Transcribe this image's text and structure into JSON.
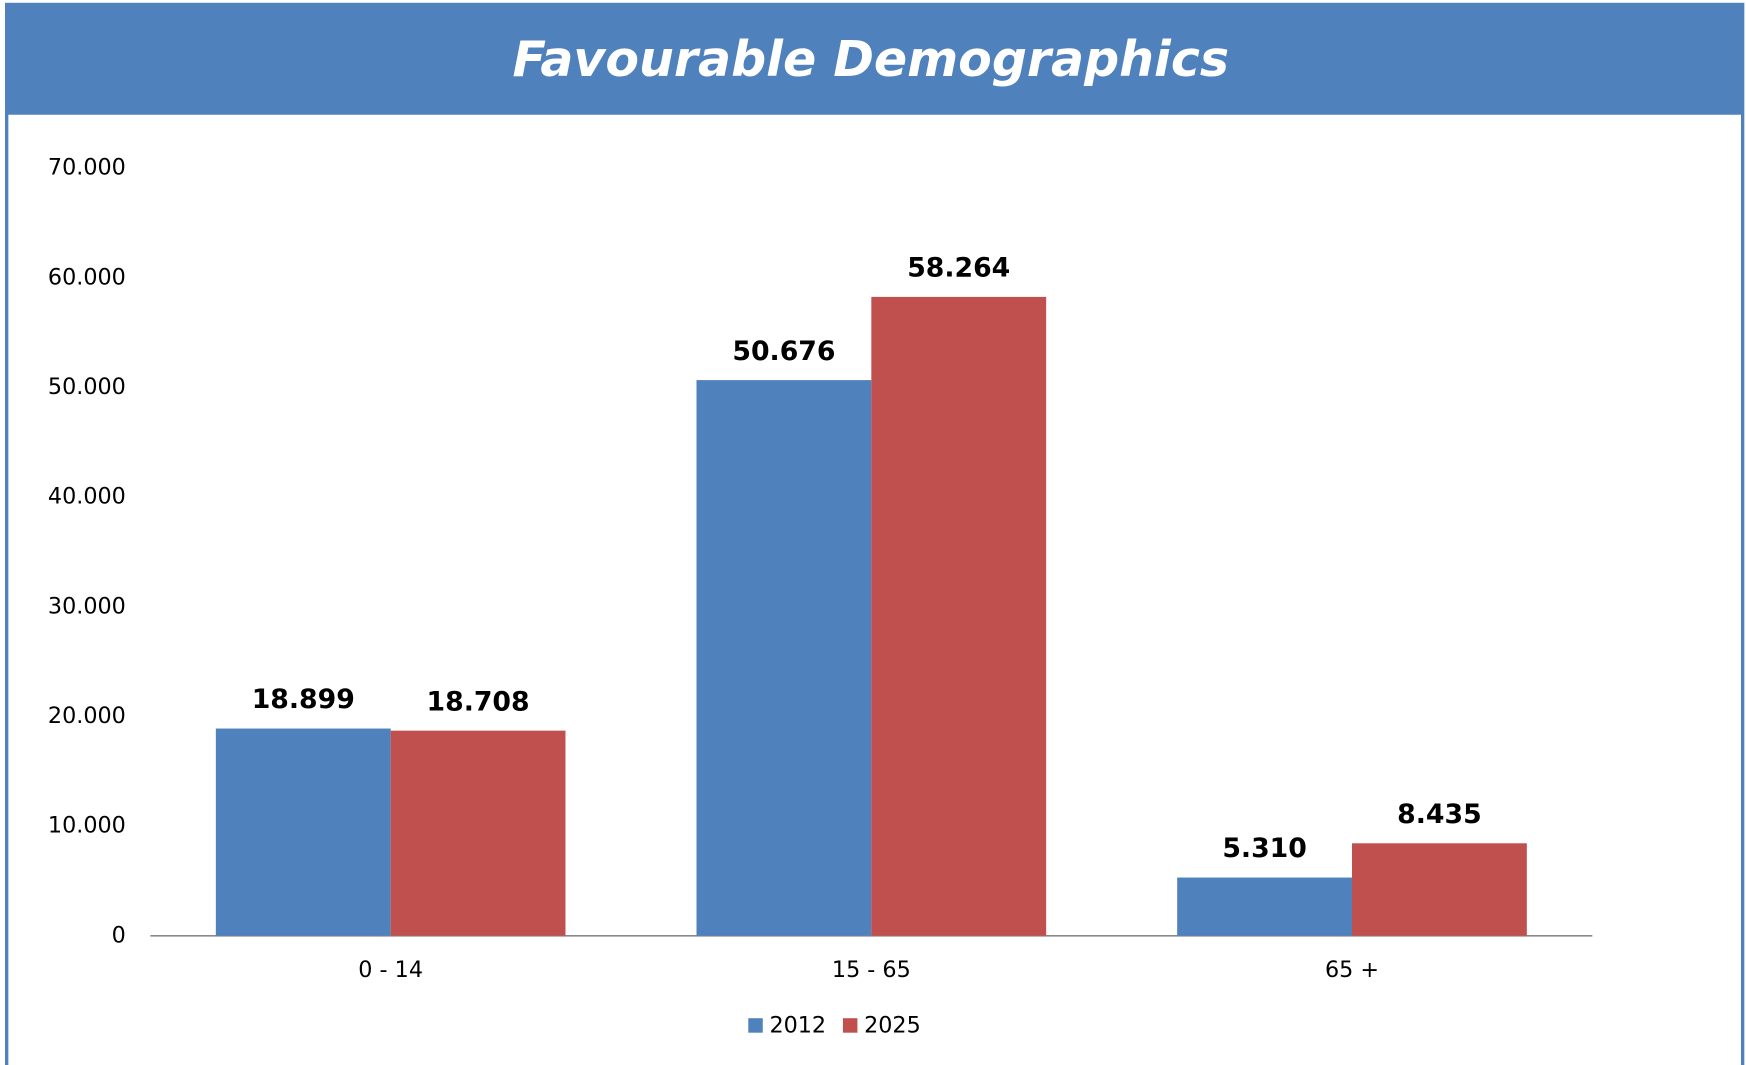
{
  "chart_data": {
    "type": "bar",
    "title": "Favourable Demographics",
    "categories": [
      "0 - 14",
      "15 - 65",
      "65 +"
    ],
    "series": [
      {
        "name": "2012",
        "color": "#4f81bd",
        "values": [
          18899,
          50676,
          5310
        ],
        "value_labels": [
          "18.899",
          "50.676",
          "5.310"
        ]
      },
      {
        "name": "2025",
        "color": "#c0504d",
        "values": [
          18708,
          58264,
          8435
        ],
        "value_labels": [
          "18.708",
          "58.264",
          "8.435"
        ]
      }
    ],
    "ylim": [
      0,
      70000
    ],
    "yticks": [
      0,
      {
        "value": 10000,
        "label": "10.000"
      },
      {
        "value": 20000,
        "label": "20.000"
      },
      {
        "value": 30000,
        "label": "30.000"
      },
      {
        "value": 40000,
        "label": "40.000"
      },
      {
        "value": 50000,
        "label": "50.000"
      },
      {
        "value": 60000,
        "label": "60.000"
      },
      {
        "value": 70000,
        "label": "70.000"
      }
    ],
    "legend": "bottom",
    "grid": false
  }
}
